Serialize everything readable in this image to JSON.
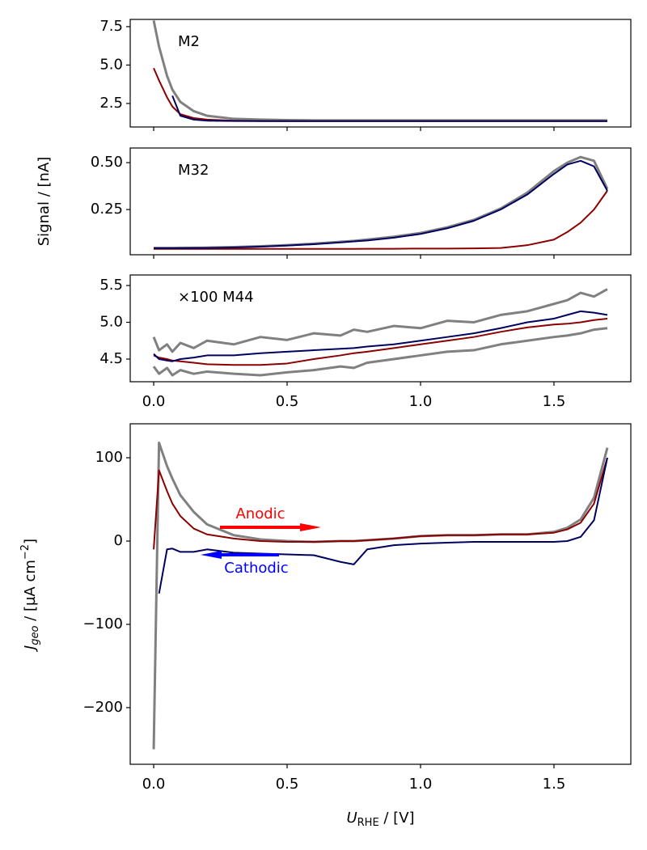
{
  "chart_data": [
    {
      "type": "line",
      "label": "M2",
      "x": [
        0,
        0.02,
        0.05,
        0.07,
        0.1,
        0.15,
        0.2,
        0.3,
        0.4,
        0.5,
        0.6,
        0.7,
        0.75,
        0.8,
        0.9,
        1.0,
        1.1,
        1.2,
        1.3,
        1.4,
        1.5,
        1.55,
        1.6,
        1.65,
        1.7
      ],
      "xlim": [
        -0.088,
        1.788
      ],
      "xticks": [
        0,
        0.5,
        1,
        1.5
      ],
      "ylim": [
        0.97,
        7.97
      ],
      "yticks": [
        2.5,
        {
          "value": 5,
          "label": "5.0"
        },
        7.5
      ],
      "series": [
        {
          "color": "#808080",
          "values": [
            7.9,
            6.2,
            4.3,
            3.4,
            2.6,
            2.0,
            1.7,
            1.5,
            1.45,
            1.42,
            1.4,
            1.4,
            1.4,
            1.4,
            1.4,
            1.4,
            1.4,
            1.4,
            1.4,
            1.4,
            1.4,
            1.4,
            1.4,
            1.4,
            1.4
          ]
        },
        {
          "color": "#8b0000",
          "values": [
            4.8,
            4.0,
            2.9,
            2.3,
            1.8,
            1.55,
            1.45,
            1.38,
            1.36,
            1.35,
            1.35,
            1.35,
            1.35,
            1.35,
            1.35,
            1.35,
            1.35,
            1.35,
            1.35,
            1.35,
            1.35,
            1.35,
            1.35,
            1.35,
            1.35
          ]
        },
        {
          "color": "#000060",
          "values": [
            null,
            null,
            null,
            3.0,
            1.7,
            1.45,
            1.38,
            1.36,
            1.35,
            1.35,
            1.35,
            1.35,
            1.35,
            1.35,
            1.35,
            1.35,
            1.35,
            1.35,
            1.35,
            1.35,
            1.35,
            1.35,
            1.35,
            1.35,
            1.35
          ]
        }
      ]
    },
    {
      "type": "line",
      "label": "M32",
      "ylabel": "Signal / [nA]",
      "x": [
        0,
        0.02,
        0.05,
        0.07,
        0.1,
        0.15,
        0.2,
        0.3,
        0.4,
        0.5,
        0.6,
        0.7,
        0.75,
        0.8,
        0.9,
        1.0,
        1.1,
        1.2,
        1.3,
        1.4,
        1.5,
        1.55,
        1.6,
        1.65,
        1.7
      ],
      "xlim": [
        -0.088,
        1.788
      ],
      "xticks": [
        0,
        0.5,
        1,
        1.5
      ],
      "ylim": [
        0.009,
        0.578
      ],
      "yticks": [
        0.25,
        {
          "value": 0.5,
          "label": "0.50"
        }
      ],
      "series": [
        {
          "color": "#808080",
          "values": [
            0.045,
            0.045,
            0.045,
            0.045,
            0.046,
            0.046,
            0.047,
            0.05,
            0.054,
            0.06,
            0.068,
            0.078,
            0.083,
            0.09,
            0.105,
            0.125,
            0.155,
            0.195,
            0.255,
            0.34,
            0.455,
            0.5,
            0.53,
            0.51,
            0.36
          ]
        },
        {
          "color": "#8b0000",
          "values": [
            0.04,
            0.04,
            0.04,
            0.04,
            0.04,
            0.04,
            0.04,
            0.04,
            0.04,
            0.04,
            0.04,
            0.04,
            0.04,
            0.041,
            0.041,
            0.042,
            0.042,
            0.043,
            0.045,
            0.06,
            0.09,
            0.13,
            0.18,
            0.25,
            0.35
          ]
        },
        {
          "color": "#000060",
          "values": [
            0.044,
            0.044,
            0.044,
            0.044,
            0.044,
            0.045,
            0.045,
            0.048,
            0.052,
            0.058,
            0.065,
            0.075,
            0.08,
            0.085,
            0.1,
            0.12,
            0.15,
            0.19,
            0.25,
            0.33,
            0.44,
            0.49,
            0.51,
            0.48,
            0.35
          ]
        }
      ]
    },
    {
      "type": "line",
      "label": "×100 M44",
      "x": [
        0,
        0.02,
        0.05,
        0.07,
        0.1,
        0.15,
        0.2,
        0.3,
        0.4,
        0.5,
        0.6,
        0.7,
        0.75,
        0.8,
        0.9,
        1.0,
        1.1,
        1.2,
        1.3,
        1.4,
        1.5,
        1.55,
        1.6,
        1.65,
        1.7
      ],
      "xlim": [
        -0.088,
        1.788
      ],
      "xticks": [
        {
          "value": 0,
          "label": "0.0"
        },
        0.5,
        {
          "value": 1,
          "label": "1.0"
        },
        1.5
      ],
      "ylim": [
        4.192,
        5.643
      ],
      "yticks": [
        4.5,
        {
          "value": 5,
          "label": "5.0"
        },
        5.5
      ],
      "series": [
        {
          "color": "#808080",
          "values": [
            4.8,
            4.62,
            4.7,
            4.6,
            4.72,
            4.65,
            4.75,
            4.7,
            4.8,
            4.76,
            4.85,
            4.82,
            4.9,
            4.87,
            4.95,
            4.92,
            5.02,
            5.0,
            5.1,
            5.15,
            5.25,
            5.3,
            5.4,
            5.35,
            5.45
          ]
        },
        {
          "color": "#808080",
          "values": [
            4.4,
            4.3,
            4.38,
            4.28,
            4.35,
            4.3,
            4.33,
            4.3,
            4.28,
            4.32,
            4.35,
            4.4,
            4.38,
            4.45,
            4.5,
            4.55,
            4.6,
            4.62,
            4.7,
            4.75,
            4.8,
            4.82,
            4.85,
            4.9,
            4.92
          ]
        },
        {
          "color": "#8b0000",
          "values": [
            4.55,
            4.52,
            4.5,
            4.48,
            4.47,
            4.45,
            4.43,
            4.42,
            4.42,
            4.44,
            4.5,
            4.55,
            4.58,
            4.6,
            4.65,
            4.7,
            4.75,
            4.8,
            4.87,
            4.93,
            4.97,
            4.98,
            5.0,
            5.03,
            5.05
          ]
        },
        {
          "color": "#000060",
          "values": [
            4.57,
            4.5,
            4.48,
            4.47,
            4.5,
            4.52,
            4.55,
            4.55,
            4.58,
            4.6,
            4.62,
            4.64,
            4.65,
            4.67,
            4.7,
            4.75,
            4.8,
            4.85,
            4.92,
            5.0,
            5.05,
            5.1,
            5.15,
            5.13,
            5.1
          ]
        }
      ]
    },
    {
      "type": "line",
      "ylabel": {
        "symbol": "J",
        "subscript": "geo",
        "unit": " / [µA cm",
        "superscript": "−2",
        "close": "]"
      },
      "xlabel": {
        "symbol": "U",
        "subscript": "RHE",
        "unit": " / [V]"
      },
      "x": [
        0,
        0.02,
        0.05,
        0.07,
        0.1,
        0.15,
        0.2,
        0.3,
        0.4,
        0.5,
        0.6,
        0.7,
        0.75,
        0.8,
        0.9,
        1.0,
        1.1,
        1.2,
        1.3,
        1.4,
        1.5,
        1.55,
        1.6,
        1.65,
        1.7
      ],
      "xlim": [
        -0.088,
        1.788
      ],
      "xticks": [
        {
          "value": 0,
          "label": "0.0"
        },
        0.5,
        {
          "value": 1,
          "label": "1.0"
        },
        1.5
      ],
      "ylim": [
        -268,
        140.8
      ],
      "yticks": [
        {
          "value": -200,
          "label": "−200"
        },
        {
          "value": -100,
          "label": "−100"
        },
        0,
        100
      ],
      "series": [
        {
          "color": "#808080",
          "values": [
            -250,
            118,
            90,
            75,
            55,
            35,
            20,
            7,
            2,
            0,
            -1,
            0,
            0,
            1,
            3,
            6,
            7,
            7,
            8,
            8,
            11,
            16,
            26,
            52,
            112
          ]
        },
        {
          "color": "#8b0000",
          "values": [
            -10,
            85,
            60,
            45,
            30,
            15,
            8,
            3,
            0,
            -1,
            -1,
            0,
            0,
            1,
            3,
            6,
            7,
            7,
            8,
            8,
            10,
            14,
            22,
            45,
            100
          ]
        },
        {
          "color": "#000060",
          "values": [
            null,
            -63,
            -10,
            -9,
            -13,
            -13,
            -10,
            -14,
            -15,
            -16,
            -17,
            -25,
            -28,
            -10,
            -5,
            -3,
            -2,
            -1,
            -1,
            -1,
            -1,
            0,
            5,
            25,
            100
          ]
        }
      ],
      "annotations": [
        {
          "text": "Anodic",
          "color": "#ff0000"
        },
        {
          "text": "Cathodic",
          "color": "#0000ff"
        }
      ]
    }
  ]
}
